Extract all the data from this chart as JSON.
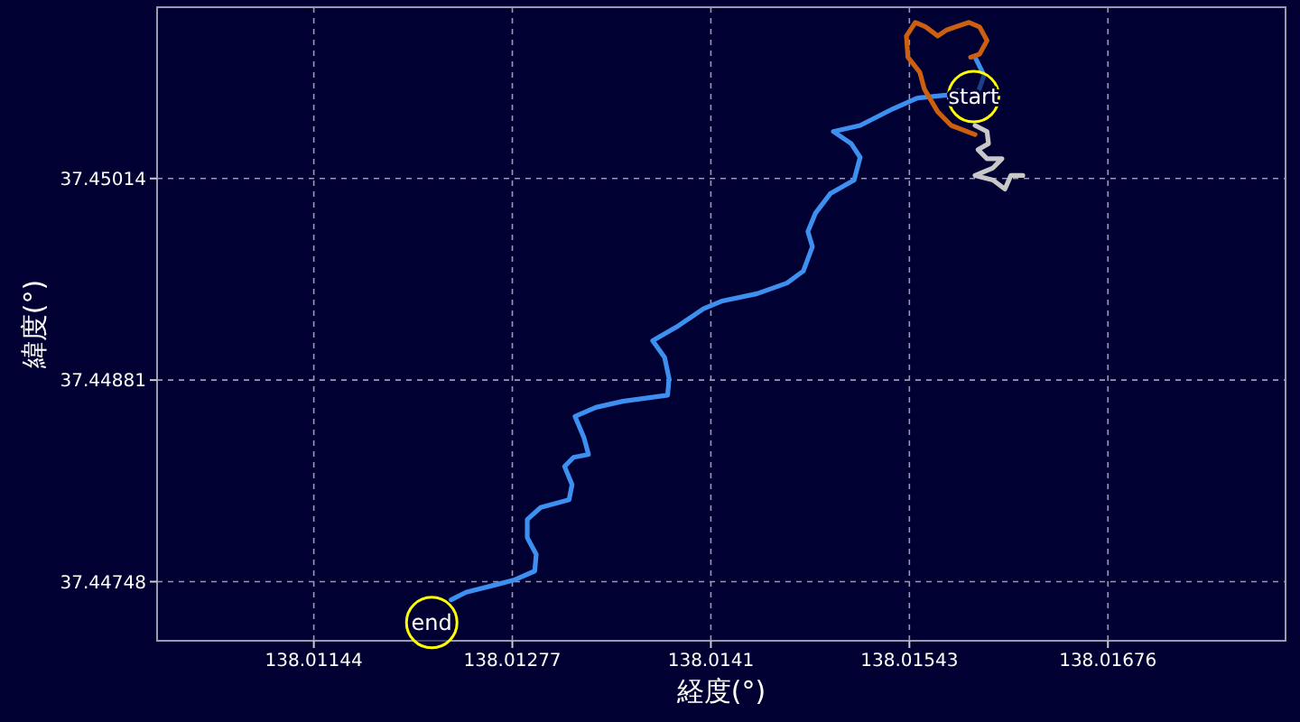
{
  "chart_data": {
    "type": "line",
    "xlabel": "経度(°)",
    "ylabel": "緯度(°)",
    "xlim": [
      138.01039,
      138.01795
    ],
    "ylim": [
      37.44709,
      37.45127
    ],
    "xticks": [
      138.01144,
      138.01277,
      138.0141,
      138.01543,
      138.01676
    ],
    "yticks": [
      37.44748,
      37.44881,
      37.45014
    ],
    "grid": true,
    "line_style": "solid",
    "marker": "none",
    "series": [
      {
        "color": "#3d8ff0",
        "x": [
          138.01587,
          138.01593,
          138.01588,
          138.01578,
          138.01568,
          138.01548,
          138.01532,
          138.0151,
          138.01492,
          138.01504,
          138.0151,
          138.01506,
          138.0149,
          138.0148,
          138.01475,
          138.01478,
          138.01472,
          138.01461,
          138.01441,
          138.01417,
          138.01405,
          138.01387,
          138.01371,
          138.01379,
          138.01382,
          138.01381,
          138.01351,
          138.01333,
          138.01319,
          138.01325,
          138.01328,
          138.01318,
          138.01312,
          138.01317,
          138.01315,
          138.01296,
          138.01287,
          138.01287,
          138.01293,
          138.01292,
          138.01278,
          138.01266,
          138.01246,
          138.01236
        ],
        "values": [
          37.45094,
          37.45082,
          37.45068,
          37.45073,
          37.45069,
          37.45067,
          37.4506,
          37.45049,
          37.45045,
          37.45037,
          37.45028,
          37.45013,
          37.45004,
          37.44991,
          37.44979,
          37.44969,
          37.44953,
          37.44945,
          37.44938,
          37.44933,
          37.44928,
          37.44916,
          37.44907,
          37.44896,
          37.44882,
          37.44871,
          37.44867,
          37.44863,
          37.44857,
          37.44843,
          37.44832,
          37.4483,
          37.44824,
          37.44812,
          37.44802,
          37.44797,
          37.44789,
          37.44777,
          37.44766,
          37.44755,
          37.44749,
          37.44746,
          37.44741,
          37.44736
        ]
      },
      {
        "color": "#cc6010",
        "x": [
          138.01587,
          138.01571,
          138.01562,
          138.01553,
          138.0155,
          138.01542,
          138.01541,
          138.01547,
          138.01554,
          138.01562,
          138.01568,
          138.01574,
          138.01583,
          138.0159,
          138.01595,
          138.0159,
          138.01584
        ],
        "values": [
          37.45043,
          37.45049,
          37.45058,
          37.45073,
          37.45084,
          37.45094,
          37.45108,
          37.45117,
          37.45114,
          37.45108,
          37.45112,
          37.45114,
          37.45117,
          37.45114,
          37.45105,
          37.45096,
          37.45094
        ]
      },
      {
        "color": "#c8c8c8",
        "x": [
          138.01587,
          138.01595,
          138.01596,
          138.01589,
          138.01595,
          138.01605,
          138.01599,
          138.01587,
          138.01599,
          138.01607,
          138.01611,
          138.01619
        ],
        "values": [
          37.45049,
          37.45045,
          37.45037,
          37.45033,
          37.45027,
          37.45027,
          37.45021,
          37.45016,
          37.45013,
          37.45007,
          37.45016,
          37.45016
        ]
      }
    ],
    "annotations": [
      {
        "text": "start",
        "x": 138.01586,
        "y": 37.45068
      },
      {
        "text": "end",
        "x": 138.01223,
        "y": 37.44721
      }
    ]
  }
}
